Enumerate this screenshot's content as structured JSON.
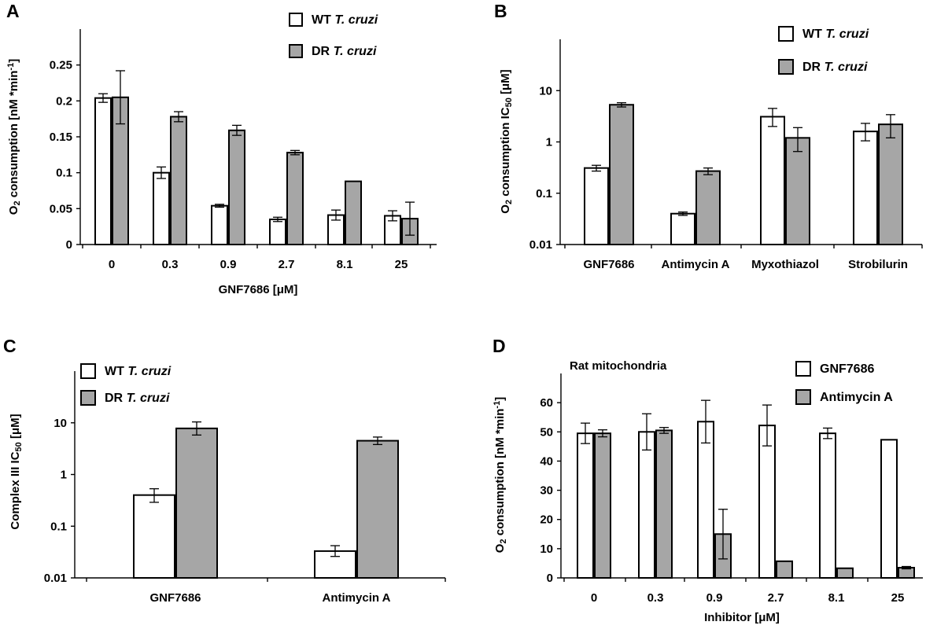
{
  "chart_data": [
    {
      "panel": "A",
      "type": "bar",
      "title": "",
      "xlabel": "GNF7686 [μM]",
      "ylabel": "O2 consumption [nM *min-1]",
      "ylabel_parts": {
        "pre": "O",
        "sub": "2",
        "mid": " consumption [nM *min",
        "sup": "-1",
        "post": "]"
      },
      "categories": [
        "0",
        "0.3",
        "0.9",
        "2.7",
        "8.1",
        "25"
      ],
      "series": [
        {
          "name": "WT T. cruzi",
          "name_plain": "WT ",
          "name_italic": "T. cruzi",
          "color": "#ffffff",
          "values": [
            0.204,
            0.1,
            0.054,
            0.035,
            0.041,
            0.04
          ],
          "errors": [
            0.006,
            0.008,
            0.002,
            0.003,
            0.007,
            0.007
          ]
        },
        {
          "name": "DR T. cruzi",
          "name_plain": "DR ",
          "name_italic": "T. cruzi",
          "color": "#a6a6a6",
          "values": [
            0.205,
            0.178,
            0.159,
            0.128,
            0.088,
            0.036
          ],
          "errors": [
            0.037,
            0.007,
            0.007,
            0.003,
            0.0,
            0.023
          ]
        }
      ],
      "yscale": "linear",
      "ylim": [
        0,
        0.3
      ],
      "yticks": [
        0,
        0.05,
        0.1,
        0.15,
        0.2,
        0.25
      ],
      "ytick_labels": [
        "0",
        "0.05",
        "0.1",
        "0.15",
        "0.2",
        "0.25"
      ],
      "grid": false,
      "legend_position": "top-right"
    },
    {
      "panel": "B",
      "type": "bar",
      "title": "",
      "xlabel": "",
      "ylabel": "O2 consumption IC50 [μM]",
      "ylabel_parts": {
        "pre": "O",
        "sub": "2",
        "mid": " consumption IC",
        "sub2": "50",
        "post": " [μM]"
      },
      "categories": [
        "GNF7686",
        "Antimycin A",
        "Myxothiazol",
        "Strobilurin"
      ],
      "series": [
        {
          "name": "WT T. cruzi",
          "name_plain": "WT ",
          "name_italic": "T. cruzi",
          "color": "#ffffff",
          "values": [
            0.31,
            0.04,
            3.1,
            1.6
          ],
          "err_low": [
            0.27,
            0.037,
            2.0,
            1.05
          ],
          "err_high": [
            0.35,
            0.043,
            4.5,
            2.3
          ]
        },
        {
          "name": "DR T. cruzi",
          "name_plain": "DR ",
          "name_italic": "T. cruzi",
          "color": "#a6a6a6",
          "values": [
            5.3,
            0.27,
            1.2,
            2.2
          ],
          "err_low": [
            4.8,
            0.23,
            0.65,
            1.2
          ],
          "err_high": [
            5.8,
            0.31,
            1.9,
            3.4
          ]
        }
      ],
      "yscale": "log",
      "ylim": [
        0.01,
        100
      ],
      "yticks": [
        0.01,
        0.1,
        1,
        10
      ],
      "ytick_labels": [
        "0.01",
        "0.1",
        "1",
        "10"
      ],
      "grid": false,
      "legend_position": "top-right"
    },
    {
      "panel": "C",
      "type": "bar",
      "title": "",
      "xlabel": "",
      "ylabel": "Complex III IC50 [μM]",
      "ylabel_parts": {
        "pre": "Complex III IC",
        "sub": "50",
        "post": " [μM]"
      },
      "categories": [
        "GNF7686",
        "Antimycin A"
      ],
      "series": [
        {
          "name": "WT T. cruzi",
          "name_plain": "WT ",
          "name_italic": "T. cruzi",
          "color": "#ffffff",
          "values": [
            0.4,
            0.033
          ],
          "err_low": [
            0.29,
            0.026
          ],
          "err_high": [
            0.53,
            0.042
          ]
        },
        {
          "name": "DR T. cruzi",
          "name_plain": "DR ",
          "name_italic": "T. cruzi",
          "color": "#a6a6a6",
          "values": [
            7.8,
            4.5
          ],
          "err_low": [
            5.8,
            3.8
          ],
          "err_high": [
            10.4,
            5.3
          ]
        }
      ],
      "yscale": "log",
      "ylim": [
        0.01,
        100
      ],
      "yticks": [
        0.01,
        0.1,
        1,
        10
      ],
      "ytick_labels": [
        "0.01",
        "0.1",
        "1",
        "10"
      ],
      "grid": false,
      "legend_position": "top-left"
    },
    {
      "panel": "D",
      "type": "bar",
      "title": "Rat mitochondria",
      "xlabel": "Inhibitor [μM]",
      "ylabel": "O2 consumption [nM *min-1]",
      "ylabel_parts": {
        "pre": "O",
        "sub": "2",
        "mid": " consumption [nM *min",
        "sup": "-1",
        "post": "]"
      },
      "categories": [
        "0",
        "0.3",
        "0.9",
        "2.7",
        "8.1",
        "25"
      ],
      "series": [
        {
          "name": "GNF7686",
          "name_plain": "GNF7686",
          "name_italic": "",
          "color": "#ffffff",
          "values": [
            49.5,
            50.0,
            53.5,
            52.2,
            49.5,
            47.3
          ],
          "errors": [
            3.5,
            6.2,
            7.3,
            7.0,
            1.8,
            0.0
          ]
        },
        {
          "name": "Antimycin A",
          "name_plain": "Antimycin A",
          "name_italic": "",
          "color": "#a6a6a6",
          "values": [
            49.5,
            50.5,
            15.0,
            5.7,
            3.3,
            3.5
          ],
          "errors": [
            1.2,
            1.0,
            8.5,
            0.0,
            0.0,
            0.4
          ]
        }
      ],
      "yscale": "linear",
      "ylim": [
        0,
        70
      ],
      "yticks": [
        0,
        10,
        20,
        30,
        40,
        50,
        60
      ],
      "ytick_labels": [
        "0",
        "10",
        "20",
        "30",
        "40",
        "50",
        "60"
      ],
      "grid": false,
      "legend_position": "top-right"
    }
  ]
}
